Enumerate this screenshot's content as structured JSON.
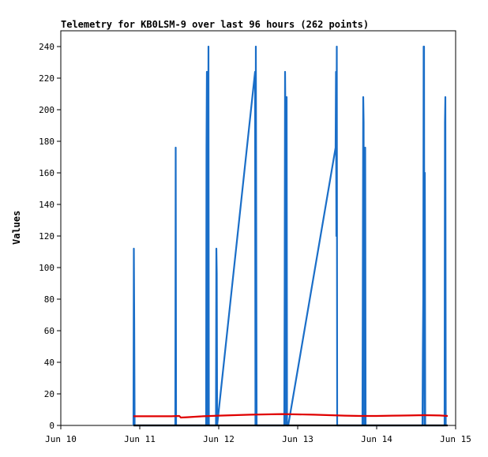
{
  "chart_data": {
    "type": "line",
    "title": "Telemetry for KB0LSM-9 over last 96 hours (262 points)",
    "xlabel": "",
    "ylabel": "Values",
    "x_tick_labels": [
      "Jun 10",
      "Jun 11",
      "Jun 12",
      "Jun 13",
      "Jun 14",
      "Jun 15"
    ],
    "x_range_days": [
      10,
      15
    ],
    "y_ticks": [
      "0",
      "20",
      "40",
      "60",
      "80",
      "100",
      "120",
      "140",
      "160",
      "180",
      "200",
      "220",
      "240"
    ],
    "ylim": [
      0,
      250
    ],
    "grid": false,
    "legend": "none",
    "series": [
      {
        "color": "#1a6ec8",
        "x": [
          10.92,
          10.925,
          10.93,
          10.935,
          10.94,
          10.945,
          11.45,
          11.455,
          11.46,
          11.465,
          11.47,
          11.84,
          11.845,
          11.85,
          11.855,
          11.86,
          11.865,
          11.87,
          11.875,
          11.88,
          11.885,
          11.89,
          11.965,
          11.97,
          11.975,
          11.98,
          12.46,
          12.465,
          12.47,
          12.475,
          12.48,
          12.485,
          12.49,
          12.83,
          12.835,
          12.84,
          12.845,
          12.85,
          12.855,
          12.86,
          12.865,
          12.87,
          12.875,
          12.88,
          13.48,
          13.485,
          13.49,
          13.495,
          13.5,
          13.505,
          13.51,
          13.515,
          13.52,
          13.82,
          13.825,
          13.83,
          13.835,
          13.84,
          13.845,
          13.85,
          13.855,
          13.86,
          13.865,
          13.87,
          14.58,
          14.585,
          14.59,
          14.595,
          14.6,
          14.605,
          14.61,
          14.615,
          14.62,
          14.625,
          14.63,
          14.86,
          14.865,
          14.87,
          14.875,
          14.88
        ],
        "values": [
          0,
          112,
          65,
          0,
          0,
          0,
          0,
          176,
          0,
          0,
          0,
          0,
          176,
          224,
          0,
          152,
          112,
          240,
          0,
          0,
          0,
          0,
          0,
          112,
          96,
          0,
          224,
          0,
          240,
          120,
          0,
          0,
          0,
          0,
          88,
          224,
          192,
          0,
          144,
          208,
          0,
          0,
          0,
          0,
          176,
          224,
          120,
          240,
          0,
          0,
          0,
          0,
          0,
          0,
          104,
          208,
          192,
          0,
          0,
          88,
          176,
          0,
          0,
          0,
          0,
          48,
          80,
          240,
          240,
          0,
          160,
          0,
          0,
          0,
          0,
          0,
          192,
          208,
          0,
          0
        ]
      },
      {
        "color": "#e00000",
        "x": [
          10.92,
          11.0,
          11.2,
          11.4,
          11.5,
          11.52,
          11.6,
          11.8,
          12.0,
          12.2,
          12.4,
          12.6,
          12.8,
          13.0,
          13.2,
          13.4,
          13.6,
          13.8,
          14.0,
          14.2,
          14.4,
          14.6,
          14.8,
          14.9
        ],
        "values": [
          5.8,
          5.8,
          5.8,
          5.8,
          6.0,
          5.0,
          5.2,
          5.8,
          6.2,
          6.5,
          6.8,
          7.0,
          7.2,
          7.0,
          6.8,
          6.5,
          6.2,
          6.0,
          6.0,
          6.2,
          6.3,
          6.5,
          6.3,
          6.0
        ]
      },
      {
        "color": "#000000",
        "x": [
          10.92,
          14.9
        ],
        "values": [
          0,
          0
        ]
      }
    ]
  }
}
